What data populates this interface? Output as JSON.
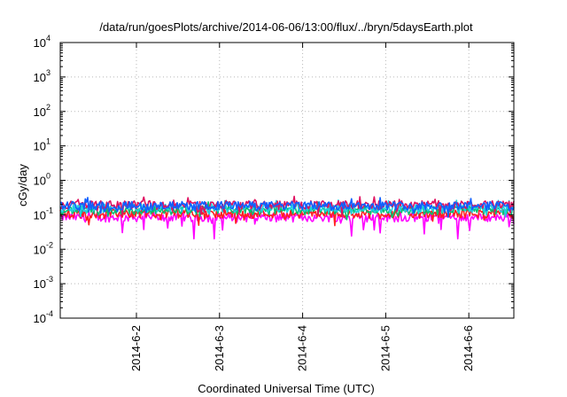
{
  "chart_data": {
    "type": "line",
    "title": "/data/run/goesPlots/archive/2014-06-06/13:00/flux/../bryn/5daysEarth.plot",
    "xlabel": "Coordinated Universal Time (UTC)",
    "ylabel": "cGy/day",
    "yscale": "log",
    "ylim": [
      0.0001,
      10000
    ],
    "y_ticks": [
      {
        "value": 0.0001,
        "base": "10",
        "exp": "-4"
      },
      {
        "value": 0.001,
        "base": "10",
        "exp": "-3"
      },
      {
        "value": 0.01,
        "base": "10",
        "exp": "-2"
      },
      {
        "value": 0.1,
        "base": "10",
        "exp": "-1"
      },
      {
        "value": 1,
        "base": "10",
        "exp": "0"
      },
      {
        "value": 10,
        "base": "10",
        "exp": "1"
      },
      {
        "value": 100,
        "base": "10",
        "exp": "2"
      },
      {
        "value": 1000,
        "base": "10",
        "exp": "3"
      },
      {
        "value": 10000,
        "base": "10",
        "exp": "4"
      }
    ],
    "xlim": [
      "2014-06-01T02:00",
      "2014-06-06T13:00"
    ],
    "x_ticks": [
      {
        "value": "2014-06-02T00:00",
        "label": "2014-6-2"
      },
      {
        "value": "2014-06-03T00:00",
        "label": "2014-6-3"
      },
      {
        "value": "2014-06-04T00:00",
        "label": "2014-6-4"
      },
      {
        "value": "2014-06-05T00:00",
        "label": "2014-6-5"
      },
      {
        "value": "2014-06-06T00:00",
        "label": "2014-6-6"
      }
    ],
    "grid": true,
    "legend": "none",
    "series": [
      {
        "color": "#ff00ff",
        "baseline": 0.085,
        "dip_depth": 0.55
      },
      {
        "color": "#ff2020",
        "baseline": 0.11,
        "dip_depth": 0.3
      },
      {
        "color": "#00c070",
        "baseline": 0.14,
        "dip_depth": 0.25
      },
      {
        "color": "#20d0e0",
        "baseline": 0.16,
        "dip_depth": 0.25
      },
      {
        "color": "#e01060",
        "baseline": 0.2,
        "dip_depth": 0.3
      },
      {
        "color": "#1060ff",
        "baseline": 0.19,
        "dip_depth": 0.3
      }
    ]
  }
}
